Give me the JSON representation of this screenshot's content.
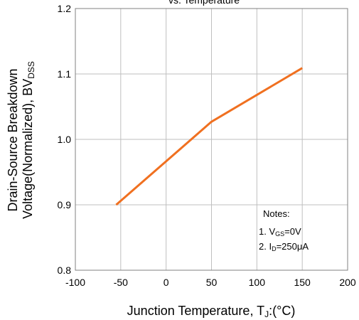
{
  "chart_data": {
    "type": "line",
    "title": "vs. Temperature",
    "xlabel": "Junction Temperature, T",
    "xlabel_sub": "J",
    "xlabel_unit": ":(°C)",
    "ylabel_line1": "Drain-Source Breakdown",
    "ylabel_line2": "Voltage(Normalized),  BV",
    "ylabel_sub": "DSS",
    "xlim": [
      -100,
      200
    ],
    "ylim": [
      0.8,
      1.2
    ],
    "x_ticks": [
      "-100",
      "-50",
      "0",
      "50",
      "100",
      "150",
      "200"
    ],
    "y_ticks": [
      "0.8",
      "0.9",
      "1.0",
      "1.1",
      "1.2"
    ],
    "grid": true,
    "series": [
      {
        "color": "#f07020",
        "x": [
          -55,
          50,
          150
        ],
        "y": [
          0.9,
          1.027,
          1.109
        ]
      }
    ],
    "notes": {
      "heading": "Notes:",
      "line1_prefix": "1. V",
      "line1_sub": "GS",
      "line1_suffix": "=0V",
      "line2_prefix": "2. I",
      "line2_sub": "D",
      "line2_suffix": "=250μA"
    }
  }
}
